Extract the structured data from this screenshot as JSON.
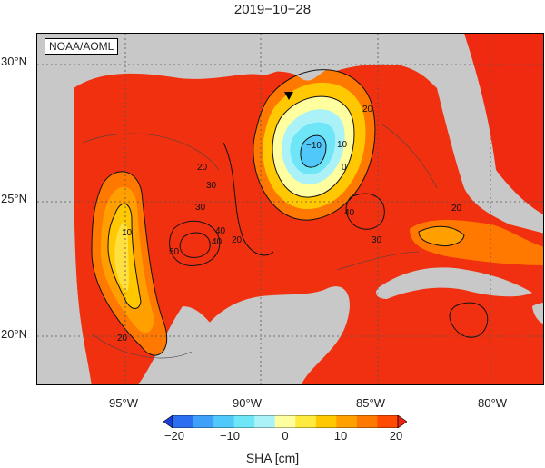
{
  "title": "2019−10−28",
  "watermark": "NOAA/AOML",
  "lat_labels": [
    "30°N",
    "25°N",
    "20°N"
  ],
  "lon_labels": [
    "95°W",
    "90°W",
    "85°W",
    "80°W"
  ],
  "colorbar": {
    "ticks": [
      "−20",
      "−10",
      "0",
      "10",
      "20"
    ],
    "label": "SHA [cm]",
    "colors": [
      "#1a3fd6",
      "#2b6ff0",
      "#3ea0f8",
      "#50c8fa",
      "#6ee6f8",
      "#aaf2f8",
      "#ffffa0",
      "#ffea40",
      "#ffc800",
      "#ffa000",
      "#ff7800",
      "#ff4a00",
      "#f02010"
    ]
  },
  "contour_labels": [
    "20",
    "30",
    "40",
    "10",
    "0",
    "−10",
    "20",
    "30",
    "40",
    "40",
    "50",
    "20",
    "20",
    "30",
    "10",
    "20"
  ],
  "colors": {
    "land": "#c8c8c8",
    "ocean_base": "#f0300f",
    "warm_core": "#ffd000",
    "eddy_cold": "#5adcf0"
  }
}
